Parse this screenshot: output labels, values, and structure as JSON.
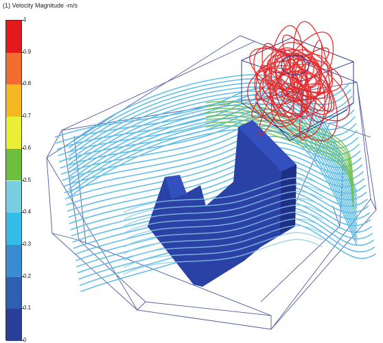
{
  "legend": {
    "title": "(1) Velocity Magnitude -m/s",
    "ticks": [
      "1",
      "0.9",
      "0.8",
      "0.7",
      "0.6",
      "0.5",
      "0.4",
      "0.3",
      "0.2",
      "0.1",
      "0"
    ],
    "bands": [
      {
        "from": 0.9,
        "to": 1.0,
        "color": "#e31a1c"
      },
      {
        "from": 0.8,
        "to": 0.9,
        "color": "#f26b2f"
      },
      {
        "from": 0.7,
        "to": 0.8,
        "color": "#f5b820"
      },
      {
        "from": 0.6,
        "to": 0.7,
        "color": "#e9ee36"
      },
      {
        "from": 0.5,
        "to": 0.6,
        "color": "#6fbf3f"
      },
      {
        "from": 0.4,
        "to": 0.5,
        "color": "#78cde0"
      },
      {
        "from": 0.3,
        "to": 0.4,
        "color": "#35bde8"
      },
      {
        "from": 0.2,
        "to": 0.3,
        "color": "#3a8cd1"
      },
      {
        "from": 0.1,
        "to": 0.2,
        "color": "#2f5fb0"
      },
      {
        "from": 0.0,
        "to": 0.1,
        "color": "#2a3f9a"
      }
    ]
  },
  "colors": {
    "box_edge": "#2b3b8f",
    "solid": "#2a41a6",
    "solid_dark": "#1d2f86",
    "streamline_fast": "#e31a1c",
    "streamline_mid": "#6fbf3f",
    "streamline_slow": "#4fb7e6"
  }
}
